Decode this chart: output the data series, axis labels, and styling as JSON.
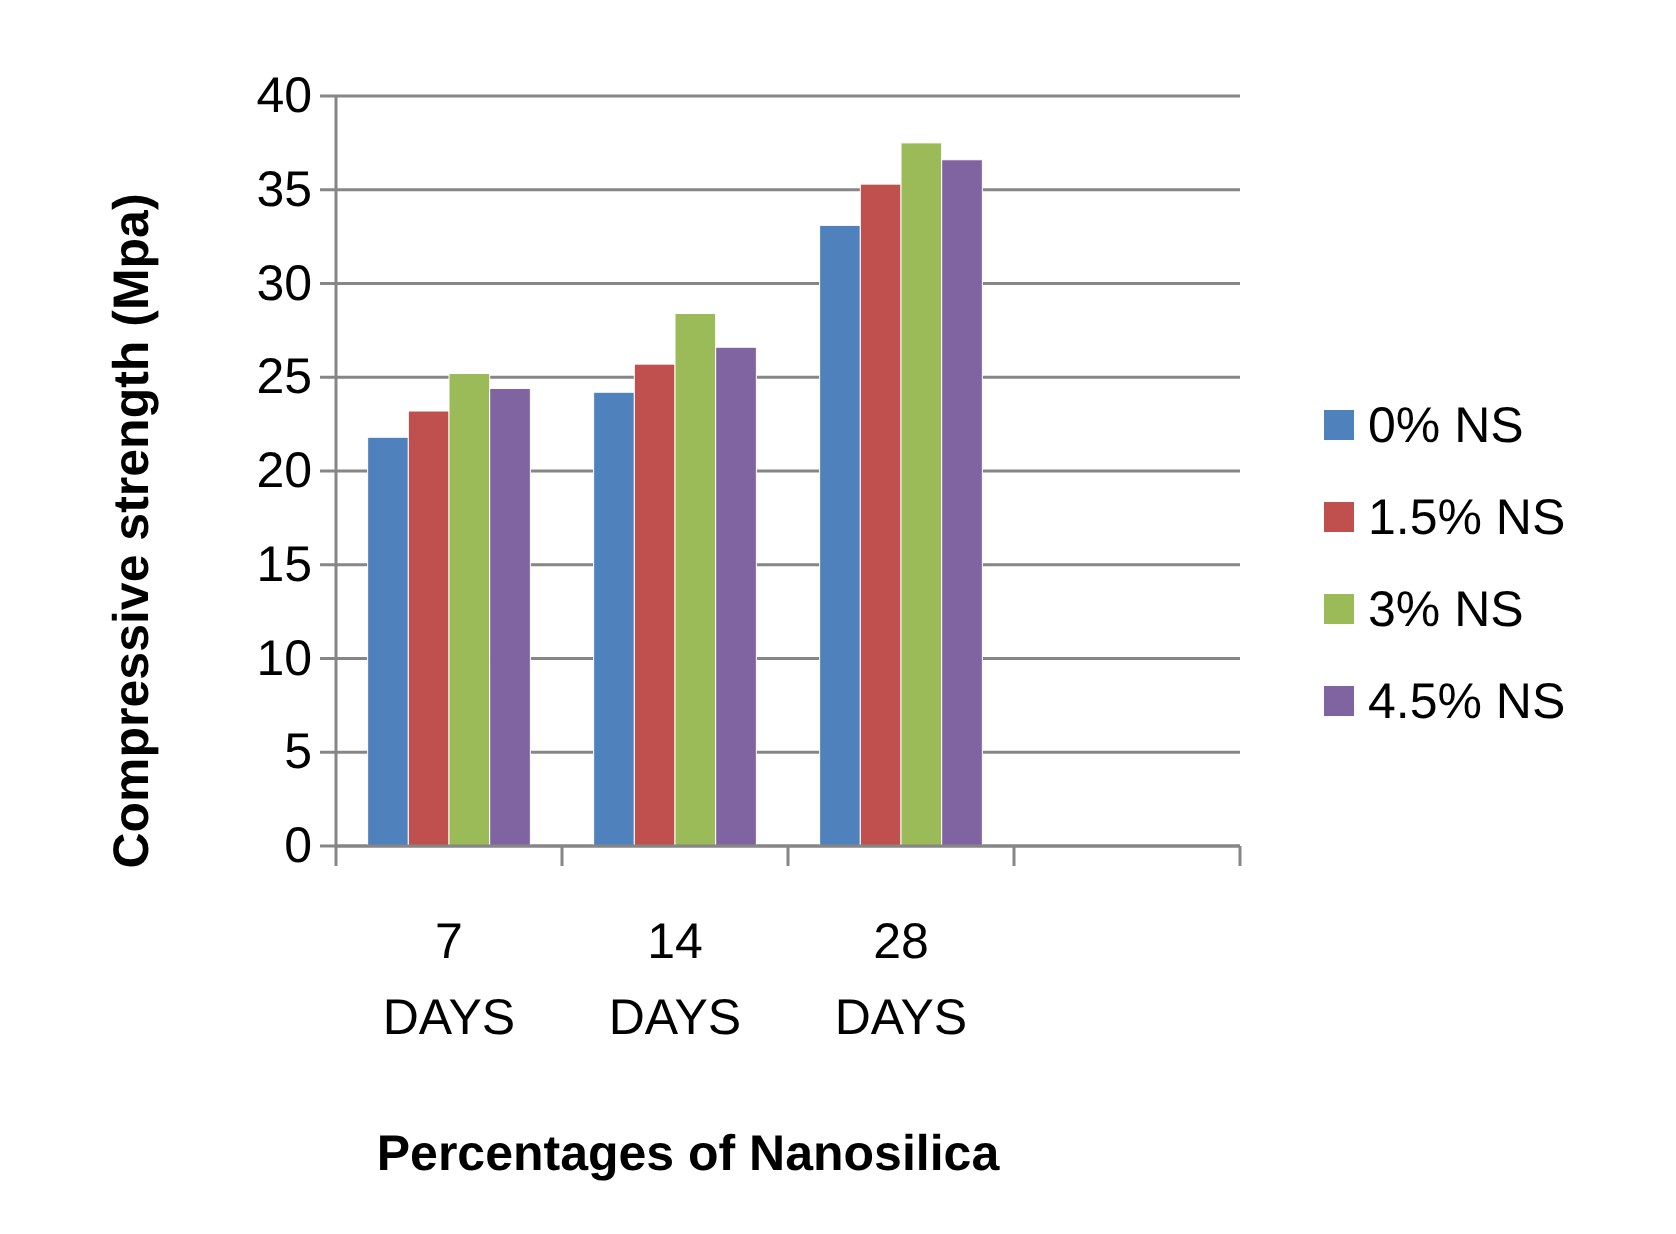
{
  "chart_data": {
    "type": "bar",
    "xlabel": "Percentages of Nanosilica",
    "ylabel": "Compressive strength (Mpa)",
    "categories": [
      "7 DAYS",
      "14 DAYS",
      "28 DAYS",
      null
    ],
    "series": [
      {
        "name": "0% NS",
        "color": "#4f81bd",
        "values": [
          21.8,
          24.2,
          33.1,
          null
        ]
      },
      {
        "name": "1.5% NS",
        "color": "#c0504d",
        "values": [
          23.2,
          25.7,
          35.3,
          null
        ]
      },
      {
        "name": "3% NS",
        "color": "#9bbb59",
        "values": [
          25.2,
          28.4,
          37.5,
          null
        ]
      },
      {
        "name": "4.5% NS",
        "color": "#8064a2",
        "values": [
          24.4,
          26.6,
          36.6,
          null
        ]
      }
    ],
    "ylim": [
      0,
      40
    ],
    "yticks": [
      0,
      5,
      10,
      15,
      20,
      25,
      30,
      35,
      40
    ],
    "grid": "y",
    "legend": "right"
  }
}
